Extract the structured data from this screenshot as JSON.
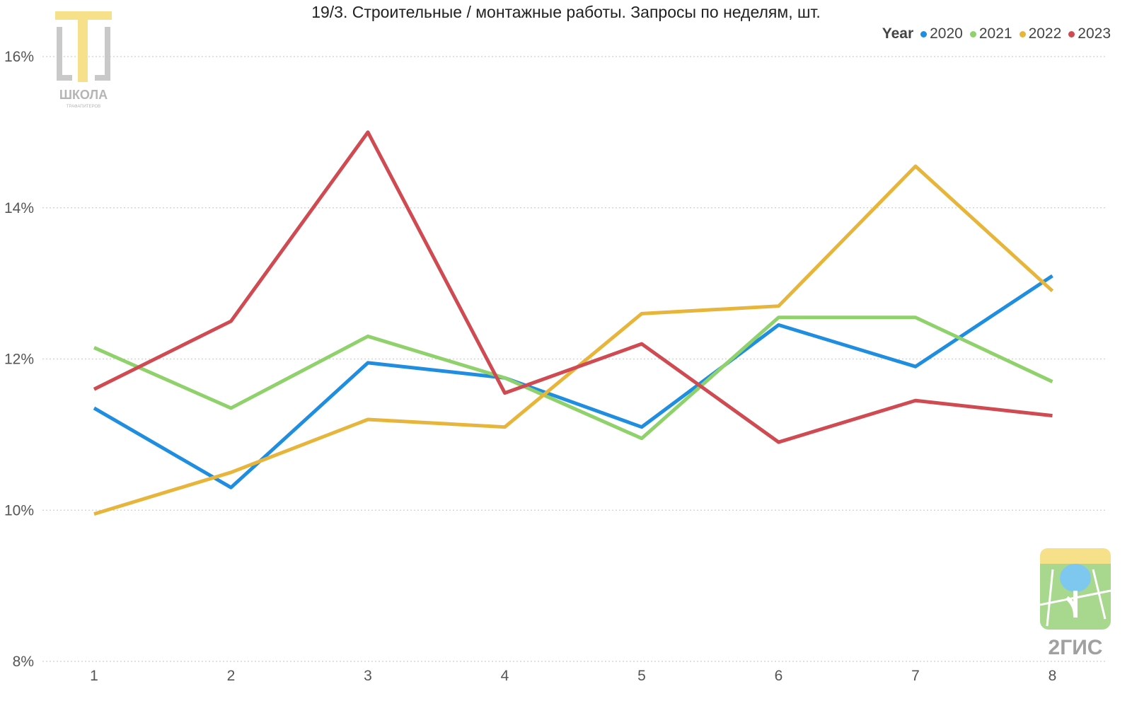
{
  "chart_data": {
    "type": "line",
    "title": "19/3. Строительные / монтажные работы. Запросы по неделям, шт.",
    "xlabel": "",
    "ylabel": "",
    "categories": [
      "1",
      "2",
      "3",
      "4",
      "5",
      "6",
      "7",
      "8"
    ],
    "y_ticks": [
      "8%",
      "10%",
      "12%",
      "14%",
      "16%"
    ],
    "ylim": [
      8,
      16.5
    ],
    "grid": true,
    "legend_title": "Year",
    "legend_position": "top-right",
    "series": [
      {
        "name": "2020",
        "color": "#1f8de0",
        "values": [
          11.35,
          10.3,
          11.95,
          11.75,
          11.1,
          12.45,
          11.9,
          13.1
        ]
      },
      {
        "name": "2021",
        "color": "#8fd16a",
        "values": [
          12.15,
          11.35,
          12.3,
          11.75,
          10.95,
          12.55,
          12.55,
          11.7
        ]
      },
      {
        "name": "2022",
        "color": "#e8b53b",
        "values": [
          9.95,
          10.5,
          11.2,
          11.1,
          12.6,
          12.7,
          14.55,
          12.9
        ]
      },
      {
        "name": "2023",
        "color": "#d04a52",
        "values": [
          11.6,
          12.5,
          15.0,
          11.55,
          12.2,
          10.9,
          11.45,
          11.25
        ]
      }
    ]
  },
  "logos": {
    "school_text": "ШКОЛА",
    "school_subtext": "ТРАФАПИТЕРОВ",
    "gis_text": "2ГИС"
  }
}
